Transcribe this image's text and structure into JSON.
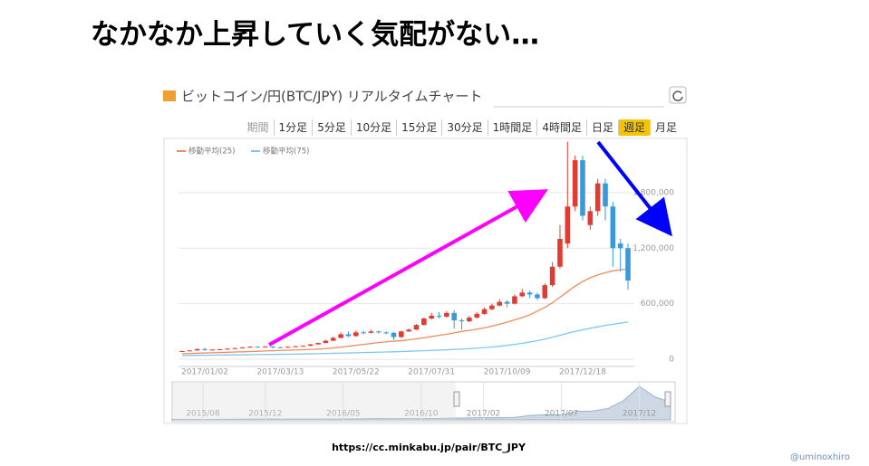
{
  "title": "なかなか上昇していく気配がない…",
  "chart_header": "ビットコイン/円(BTC/JPY) リアルタイムチャート",
  "periods": [
    "期間",
    "1分足",
    "5分足",
    "10分足",
    "15分足",
    "30分足",
    "1時間足",
    "4時間足",
    "日足",
    "週足",
    "月足"
  ],
  "selected_period_index": 9,
  "source": "https://cc.minkabu.jp/pair/BTC_JPY",
  "credit": "@uminoxhiro",
  "chart_data": {
    "type": "candlestick",
    "categories": [
      null,
      null,
      null,
      "2017/01/02",
      null,
      null,
      null,
      null,
      null,
      null,
      null,
      null,
      null,
      "2017/03/13",
      null,
      null,
      null,
      null,
      null,
      null,
      null,
      null,
      null,
      "2017/05/22",
      null,
      null,
      null,
      null,
      null,
      null,
      null,
      null,
      null,
      "2017/07/31",
      null,
      null,
      null,
      null,
      null,
      null,
      null,
      null,
      null,
      "2017/10/09",
      null,
      null,
      null,
      null,
      null,
      null,
      null,
      null,
      null,
      "2017/12/18",
      null,
      null,
      null,
      null,
      null,
      null
    ],
    "open": [
      82000,
      88000,
      95000,
      110000,
      100000,
      105000,
      108000,
      115000,
      120000,
      128000,
      135000,
      132000,
      138000,
      130000,
      128000,
      135000,
      140000,
      145000,
      160000,
      175000,
      200000,
      230000,
      270000,
      250000,
      290000,
      285000,
      300000,
      290000,
      285000,
      240000,
      300000,
      320000,
      370000,
      440000,
      470000,
      460000,
      500000,
      420000,
      410000,
      450000,
      490000,
      540000,
      580000,
      620000,
      600000,
      680000,
      720000,
      700000,
      660000,
      800000,
      1000000,
      1250000,
      1650000,
      2150000,
      1450000,
      1600000,
      1900000,
      1650000,
      1250000,
      1200000
    ],
    "high": [
      92000,
      98000,
      115000,
      125000,
      108000,
      112000,
      118000,
      125000,
      132000,
      140000,
      140000,
      142000,
      140000,
      135000,
      138000,
      145000,
      148000,
      165000,
      180000,
      210000,
      245000,
      290000,
      300000,
      310000,
      310000,
      320000,
      310000,
      300000,
      295000,
      310000,
      330000,
      380000,
      450000,
      500000,
      510000,
      520000,
      530000,
      440000,
      470000,
      510000,
      560000,
      600000,
      650000,
      640000,
      700000,
      760000,
      740000,
      720000,
      820000,
      1050000,
      1450000,
      2350000,
      2200000,
      2200000,
      1650000,
      1950000,
      1950000,
      1700000,
      1300000,
      1250000
    ],
    "low": [
      80000,
      86000,
      93000,
      90000,
      95000,
      100000,
      105000,
      112000,
      118000,
      125000,
      128000,
      125000,
      115000,
      120000,
      125000,
      132000,
      138000,
      142000,
      158000,
      172000,
      195000,
      225000,
      240000,
      245000,
      270000,
      280000,
      275000,
      270000,
      210000,
      230000,
      295000,
      315000,
      365000,
      430000,
      440000,
      450000,
      330000,
      320000,
      400000,
      440000,
      480000,
      530000,
      570000,
      560000,
      590000,
      670000,
      660000,
      640000,
      650000,
      780000,
      980000,
      1200000,
      1600000,
      1500000,
      1400000,
      1550000,
      1500000,
      1000000,
      950000,
      750000
    ],
    "close": [
      88000,
      95000,
      110000,
      100000,
      105000,
      108000,
      115000,
      120000,
      128000,
      135000,
      132000,
      138000,
      130000,
      128000,
      135000,
      140000,
      145000,
      160000,
      175000,
      200000,
      230000,
      270000,
      250000,
      290000,
      285000,
      300000,
      290000,
      285000,
      240000,
      300000,
      320000,
      370000,
      440000,
      470000,
      460000,
      500000,
      420000,
      410000,
      450000,
      490000,
      540000,
      580000,
      620000,
      600000,
      680000,
      720000,
      700000,
      660000,
      800000,
      1000000,
      1300000,
      1650000,
      2150000,
      1550000,
      1600000,
      1900000,
      1650000,
      1200000,
      1200000,
      850000
    ],
    "up_color": "#e03c31",
    "down_color": "#3a9ad9",
    "moving_averages": [
      {
        "name": "移動平均(25)",
        "color": "#f08a5d",
        "values": [
          60000,
          62000,
          65000,
          68000,
          70000,
          72000,
          75000,
          78000,
          80000,
          83000,
          86000,
          89000,
          92000,
          95000,
          98000,
          100000,
          103000,
          106000,
          110000,
          115000,
          122000,
          130000,
          140000,
          150000,
          160000,
          170000,
          180000,
          188000,
          195000,
          200000,
          210000,
          220000,
          232000,
          245000,
          258000,
          270000,
          285000,
          300000,
          312000,
          325000,
          340000,
          358000,
          378000,
          400000,
          425000,
          450000,
          480000,
          520000,
          560000,
          610000,
          670000,
          730000,
          790000,
          840000,
          880000,
          910000,
          935000,
          955000,
          965000,
          975000
        ]
      },
      {
        "name": "移動平均(75)",
        "color": "#7cc8ec",
        "values": [
          40000,
          41000,
          42000,
          43000,
          44000,
          45000,
          46000,
          47000,
          48000,
          49000,
          50000,
          51000,
          52000,
          53000,
          54000,
          55000,
          57000,
          58000,
          60000,
          62000,
          64000,
          66000,
          68000,
          70000,
          72000,
          74000,
          76000,
          78000,
          80000,
          83000,
          86000,
          89000,
          92000,
          95000,
          98000,
          102000,
          106000,
          110000,
          115000,
          120000,
          126000,
          132000,
          140000,
          150000,
          160000,
          172000,
          185000,
          200000,
          218000,
          238000,
          258000,
          280000,
          300000,
          318000,
          335000,
          350000,
          365000,
          378000,
          390000,
          402000
        ]
      }
    ],
    "ylim": [
      0,
      2400000
    ],
    "yticks": [
      0,
      {
        "value": 600000,
        "label": "600,000"
      },
      {
        "value": 1200000,
        "label": "1,200,000"
      },
      {
        "value": 1800000,
        "label": "1,800,000"
      }
    ],
    "grid": true,
    "navigator": {
      "categories": [
        null,
        null,
        "2015/08",
        null,
        null,
        null,
        "2015/12",
        null,
        null,
        null,
        null,
        "2016/05",
        null,
        null,
        null,
        null,
        "2016/10",
        null,
        null,
        null,
        "2017/02",
        null,
        null,
        null,
        null,
        "2017/07",
        null,
        null,
        null,
        null,
        "2017/12",
        null,
        null
      ],
      "values": [
        28000,
        30000,
        28000,
        30000,
        38000,
        45000,
        50000,
        48000,
        45000,
        45000,
        48000,
        50000,
        60000,
        75000,
        70000,
        68000,
        68000,
        80000,
        100000,
        110000,
        130000,
        120000,
        140000,
        250000,
        290000,
        280000,
        480000,
        500000,
        650000,
        1100000,
        1900000,
        1300000,
        1000000
      ],
      "ylim": [
        0,
        2000000
      ],
      "color": "#9fb3c8"
    }
  }
}
